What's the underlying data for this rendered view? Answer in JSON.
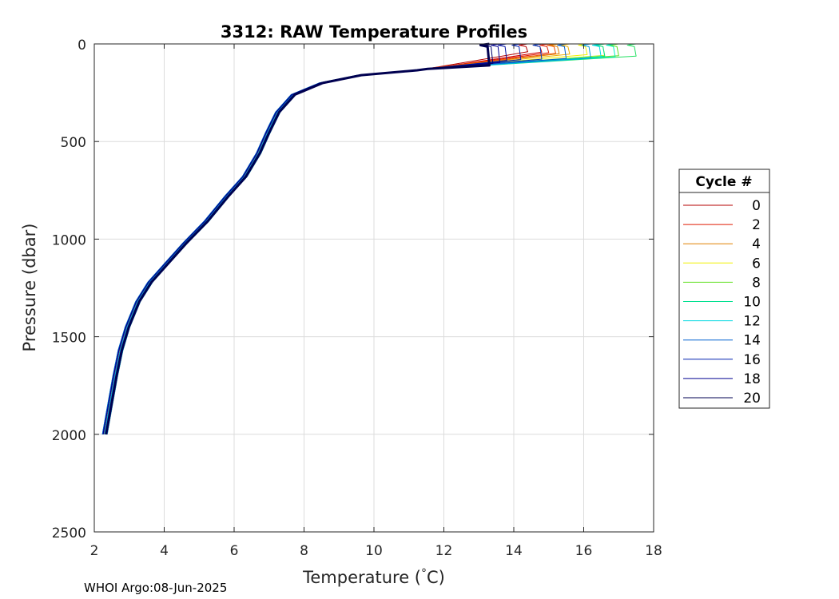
{
  "chart_data": {
    "type": "line",
    "title": "3312: RAW Temperature Profiles",
    "xlabel": "Temperature (",
    "xlabel_degree": "°",
    "xlabel_unit": "C)",
    "ylabel": "Pressure (dbar)",
    "xlim": [
      2,
      18
    ],
    "ylim": [
      0,
      2500
    ],
    "y_reversed": true,
    "grid": true,
    "x_ticks": [
      "2",
      "4",
      "6",
      "8",
      "10",
      "12",
      "14",
      "16",
      "18"
    ],
    "y_ticks": [
      "0",
      "500",
      "1000",
      "1500",
      "2000",
      "2500"
    ],
    "legend_title": "Cycle #",
    "legend_placement": "outside-right",
    "base_profile": [
      [
        2.3,
        2000
      ],
      [
        2.45,
        1850
      ],
      [
        2.6,
        1700
      ],
      [
        2.75,
        1570
      ],
      [
        2.95,
        1450
      ],
      [
        3.25,
        1320
      ],
      [
        3.6,
        1220
      ],
      [
        4.1,
        1120
      ],
      [
        4.6,
        1020
      ],
      [
        5.2,
        910
      ],
      [
        5.8,
        780
      ],
      [
        6.3,
        680
      ],
      [
        6.7,
        560
      ],
      [
        6.95,
        460
      ],
      [
        7.25,
        350
      ],
      [
        7.7,
        260
      ],
      [
        8.5,
        200
      ],
      [
        9.6,
        160
      ],
      [
        11.2,
        135
      ],
      [
        13.0,
        120
      ]
    ],
    "series": [
      {
        "name": "0",
        "color": "#b40000",
        "surface_temp": 14.4,
        "mld": 40
      },
      {
        "name": "",
        "color": "#d00000",
        "surface_temp": 14.8,
        "mld": 42
      },
      {
        "name": "2",
        "color": "#e01a00",
        "surface_temp": 15.0,
        "mld": 45
      },
      {
        "name": "",
        "color": "#ee5000",
        "surface_temp": 15.2,
        "mld": 48
      },
      {
        "name": "4",
        "color": "#e08000",
        "surface_temp": 15.3,
        "mld": 50
      },
      {
        "name": "",
        "color": "#f0b000",
        "surface_temp": 15.6,
        "mld": 52
      },
      {
        "name": "6",
        "color": "#f0f000",
        "surface_temp": 16.1,
        "mld": 55
      },
      {
        "name": "",
        "color": "#b8f020",
        "surface_temp": 16.6,
        "mld": 58
      },
      {
        "name": "8",
        "color": "#60e020",
        "surface_temp": 17.0,
        "mld": 60
      },
      {
        "name": "",
        "color": "#20e060",
        "surface_temp": 17.5,
        "mld": 62
      },
      {
        "name": "10",
        "color": "#00e090",
        "surface_temp": 16.6,
        "mld": 63
      },
      {
        "name": "",
        "color": "#00f0c0",
        "surface_temp": 16.9,
        "mld": 66
      },
      {
        "name": "12",
        "color": "#00d8e0",
        "surface_temp": 16.5,
        "mld": 70
      },
      {
        "name": "",
        "color": "#009ae0",
        "surface_temp": 16.2,
        "mld": 72
      },
      {
        "name": "14",
        "color": "#0060d0",
        "surface_temp": 15.5,
        "mld": 75
      },
      {
        "name": "",
        "color": "#0040c0",
        "surface_temp": 14.8,
        "mld": 78
      },
      {
        "name": "16",
        "color": "#0020b0",
        "surface_temp": 14.2,
        "mld": 80
      },
      {
        "name": "",
        "color": "#0010a0",
        "surface_temp": 13.8,
        "mld": 85
      },
      {
        "name": "18",
        "color": "#000090",
        "surface_temp": 13.6,
        "mld": 95
      },
      {
        "name": "",
        "color": "#000070",
        "surface_temp": 13.4,
        "mld": 100
      },
      {
        "name": "20",
        "color": "#000050",
        "surface_temp": 13.3,
        "mld": 110
      }
    ]
  },
  "footer": "WHOI Argo:08-Jun-2025"
}
